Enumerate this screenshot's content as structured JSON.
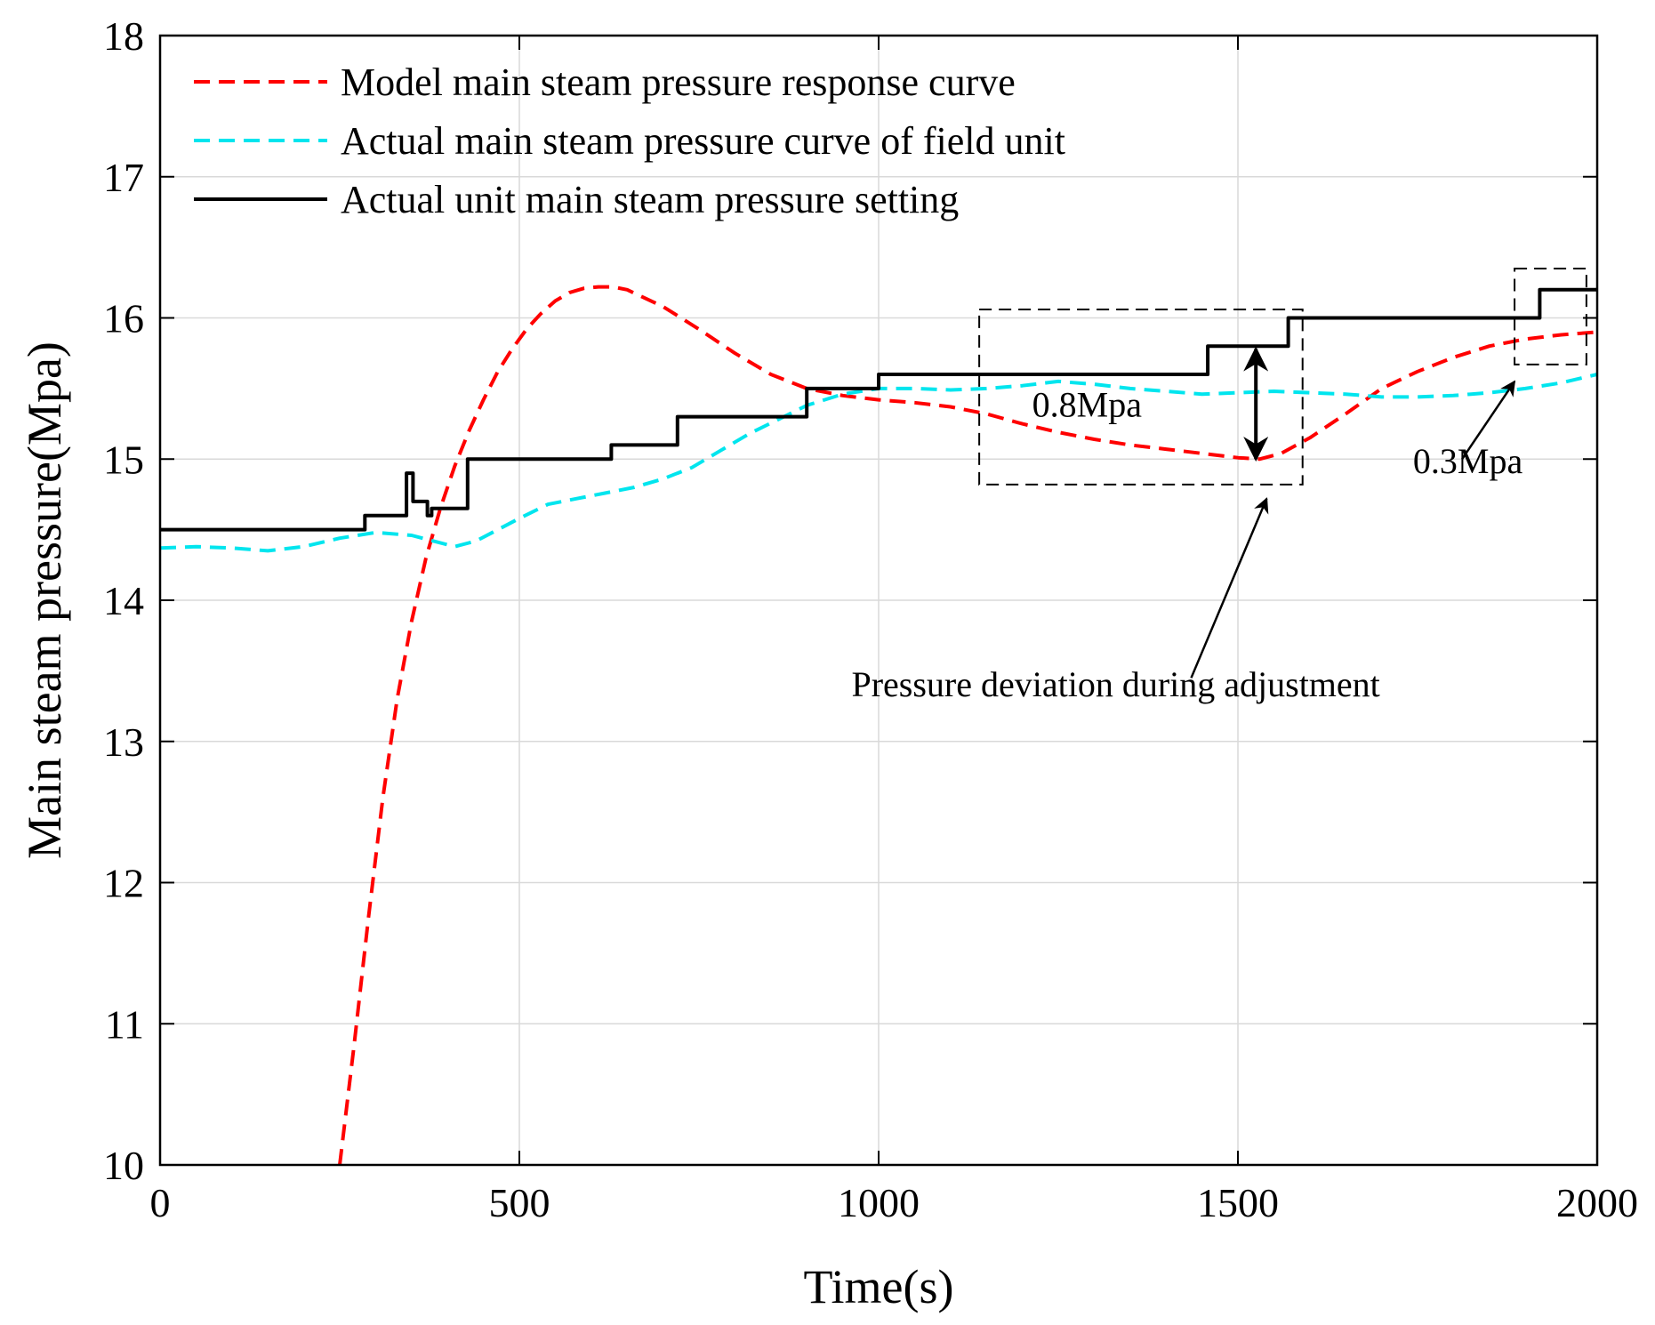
{
  "chart_data": {
    "type": "line",
    "xlabel": "Time(s)",
    "ylabel": "Main steam pressure(Mpa)",
    "xlim": [
      0,
      2000
    ],
    "ylim": [
      10,
      18
    ],
    "xticks": [
      0,
      500,
      1000,
      1500,
      2000
    ],
    "yticks": [
      10,
      11,
      12,
      13,
      14,
      15,
      16,
      17,
      18
    ],
    "grid": true,
    "legend_position": "top-left",
    "series": [
      {
        "name": "Model main steam pressure response curve",
        "color": "#ff0000",
        "style": "dashed",
        "x": [
          250,
          270,
          290,
          310,
          330,
          350,
          370,
          390,
          410,
          430,
          450,
          470,
          490,
          510,
          530,
          550,
          570,
          590,
          610,
          630,
          650,
          700,
          750,
          800,
          850,
          900,
          950,
          1000,
          1050,
          1100,
          1150,
          1200,
          1250,
          1300,
          1350,
          1400,
          1450,
          1500,
          1530,
          1560,
          1600,
          1650,
          1700,
          1750,
          1800,
          1850,
          1900,
          1950,
          2000
        ],
        "y": [
          10.0,
          10.85,
          11.75,
          12.6,
          13.3,
          13.85,
          14.3,
          14.65,
          14.95,
          15.2,
          15.42,
          15.62,
          15.78,
          15.92,
          16.03,
          16.12,
          16.18,
          16.21,
          16.22,
          16.22,
          16.2,
          16.08,
          15.92,
          15.75,
          15.6,
          15.5,
          15.45,
          15.42,
          15.4,
          15.37,
          15.32,
          15.25,
          15.19,
          15.14,
          15.1,
          15.07,
          15.04,
          15.01,
          15.0,
          15.04,
          15.15,
          15.32,
          15.5,
          15.62,
          15.72,
          15.8,
          15.85,
          15.88,
          15.9
        ]
      },
      {
        "name": "Actual main steam pressure curve of field unit",
        "color": "#00e5ee",
        "style": "dashed",
        "x": [
          0,
          50,
          100,
          150,
          200,
          250,
          300,
          350,
          380,
          410,
          440,
          470,
          500,
          540,
          580,
          620,
          660,
          700,
          740,
          780,
          820,
          860,
          900,
          950,
          1000,
          1050,
          1100,
          1150,
          1200,
          1250,
          1300,
          1350,
          1400,
          1450,
          1500,
          1550,
          1600,
          1650,
          1700,
          1750,
          1800,
          1850,
          1900,
          1950,
          2000
        ],
        "y": [
          14.37,
          14.38,
          14.37,
          14.35,
          14.38,
          14.44,
          14.48,
          14.46,
          14.42,
          14.38,
          14.42,
          14.5,
          14.58,
          14.68,
          14.72,
          14.76,
          14.8,
          14.86,
          14.94,
          15.06,
          15.18,
          15.28,
          15.38,
          15.46,
          15.5,
          15.5,
          15.49,
          15.5,
          15.52,
          15.55,
          15.53,
          15.5,
          15.48,
          15.46,
          15.47,
          15.48,
          15.47,
          15.46,
          15.44,
          15.44,
          15.45,
          15.47,
          15.5,
          15.54,
          15.6
        ]
      },
      {
        "name": "Actual unit main steam pressure setting",
        "color": "#000000",
        "style": "solid",
        "x": [
          0,
          285,
          285,
          343,
          343,
          352,
          352,
          358,
          358,
          372,
          372,
          378,
          378,
          385,
          385,
          428,
          428,
          628,
          628,
          720,
          720,
          900,
          900,
          1000,
          1000,
          1458,
          1458,
          1570,
          1570,
          1920,
          1920,
          2000
        ],
        "y": [
          14.5,
          14.5,
          14.6,
          14.6,
          14.9,
          14.9,
          14.7,
          14.7,
          14.7,
          14.7,
          14.6,
          14.6,
          14.65,
          14.65,
          14.65,
          14.65,
          15.0,
          15.0,
          15.1,
          15.1,
          15.3,
          15.3,
          15.5,
          15.5,
          15.6,
          15.6,
          15.8,
          15.8,
          16.0,
          16.0,
          16.2,
          16.2
        ]
      }
    ],
    "annotations": [
      {
        "text": "0.8Mpa"
      },
      {
        "text": "0.3Mpa"
      },
      {
        "text": "Pressure deviation during adjustment"
      }
    ],
    "highlight_boxes": [
      {
        "x": [
          1140,
          1590
        ],
        "y": [
          14.82,
          16.06
        ]
      },
      {
        "x": [
          1885,
          1985
        ],
        "y": [
          15.67,
          16.35
        ]
      }
    ]
  }
}
